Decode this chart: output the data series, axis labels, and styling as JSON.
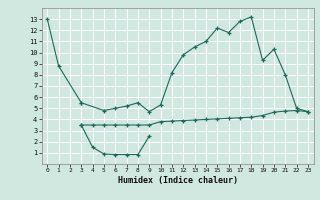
{
  "background_color": "#d0e8e0",
  "line_color": "#1a6b5a",
  "grid_color": "#ffffff",
  "xlabel": "Humidex (Indice chaleur)",
  "xlim": [
    -0.5,
    23.5
  ],
  "ylim": [
    0,
    14
  ],
  "xticks": [
    0,
    1,
    2,
    3,
    4,
    5,
    6,
    7,
    8,
    9,
    10,
    11,
    12,
    13,
    14,
    15,
    16,
    17,
    18,
    19,
    20,
    21,
    22,
    23
  ],
  "yticks": [
    1,
    2,
    3,
    4,
    5,
    6,
    7,
    8,
    9,
    10,
    11,
    12,
    13
  ],
  "s1x": [
    0,
    1,
    3
  ],
  "s1y": [
    13,
    8.8,
    5.5
  ],
  "s2x": [
    3,
    5,
    6,
    7,
    8,
    9,
    10,
    11,
    12,
    13,
    14,
    15,
    16,
    17,
    18,
    19,
    20,
    21,
    22,
    23
  ],
  "s2y": [
    5.5,
    4.8,
    5.0,
    5.2,
    5.5,
    4.7,
    5.3,
    8.2,
    9.8,
    10.5,
    11.0,
    12.2,
    11.8,
    12.8,
    13.2,
    9.3,
    10.3,
    8.0,
    5.0,
    4.7
  ],
  "s3x": [
    3,
    4,
    5,
    6,
    7,
    8,
    9
  ],
  "s3y": [
    3.5,
    1.5,
    0.9,
    0.85,
    0.85,
    0.85,
    2.5
  ],
  "s4x": [
    3,
    4,
    5,
    6,
    7,
    8,
    9,
    10,
    11,
    12,
    13,
    14,
    15,
    16,
    17,
    18,
    19,
    20,
    21,
    22,
    23
  ],
  "s4y": [
    3.5,
    3.5,
    3.5,
    3.5,
    3.5,
    3.5,
    3.5,
    3.8,
    3.85,
    3.9,
    3.95,
    4.0,
    4.05,
    4.1,
    4.15,
    4.2,
    4.35,
    4.65,
    4.75,
    4.8,
    4.7
  ]
}
